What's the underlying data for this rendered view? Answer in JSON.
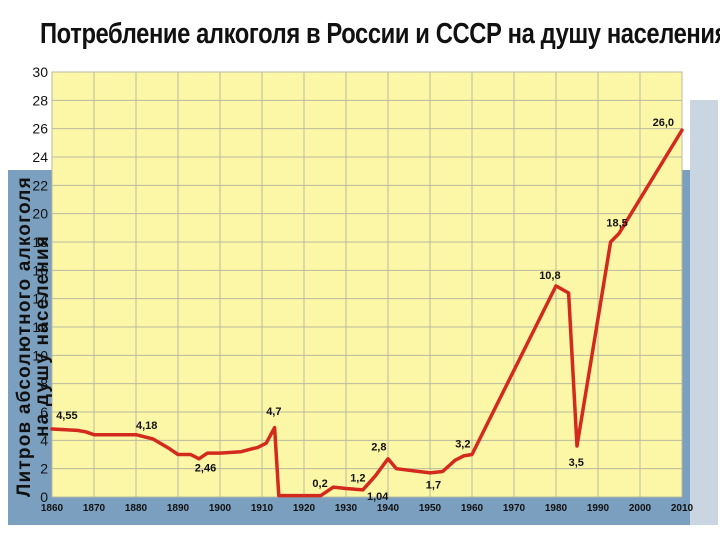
{
  "chart_data": {
    "type": "line",
    "title": "Потребление алкоголя в России и СССР на душу населения",
    "ylabel_line1": "Литров абсолютного алкоголя",
    "ylabel_line2": "на душу населения",
    "xlabel": "",
    "ylim": [
      0,
      30
    ],
    "xlim": [
      1860,
      2010
    ],
    "grid": true,
    "y_ticks": [
      "0",
      "2",
      "4",
      "6",
      "8",
      "10",
      "12",
      "14",
      "16",
      "18",
      "20",
      "22",
      "24",
      "26",
      "28",
      "30"
    ],
    "x_ticks": [
      "1860",
      "1870",
      "1880",
      "1890",
      "1900",
      "1910",
      "1920",
      "1930",
      "1940",
      "1950",
      "1960",
      "1970",
      "1980",
      "1990",
      "2000",
      "2010"
    ],
    "series": [
      {
        "name": "",
        "color": "#d42a1e",
        "x": [
          1860,
          1866,
          1868,
          1870,
          1880,
          1884,
          1888,
          1890,
          1893,
          1895,
          1897,
          1900,
          1905,
          1909,
          1911,
          1913,
          1914,
          1917,
          1924,
          1927,
          1930,
          1934,
          1937,
          1940,
          1942,
          1950,
          1953,
          1956,
          1958,
          1960,
          1980,
          1983,
          1985,
          1993,
          1995,
          2010
        ],
        "y": [
          4.8,
          4.7,
          4.6,
          4.4,
          4.4,
          4.1,
          3.4,
          3.0,
          3.0,
          2.7,
          3.1,
          3.1,
          3.2,
          3.5,
          3.8,
          4.9,
          0.1,
          0.1,
          0.1,
          0.7,
          0.6,
          0.5,
          1.5,
          2.7,
          2.0,
          1.7,
          1.8,
          2.6,
          2.9,
          3.0,
          14.9,
          14.4,
          3.6,
          18.0,
          18.6,
          25.9
        ]
      }
    ],
    "annotations": [
      {
        "text": "4,55",
        "x": 1861,
        "y": 5.5
      },
      {
        "text": "4,18",
        "x": 1880,
        "y": 4.8
      },
      {
        "text": "2,46",
        "x": 1894,
        "y": 1.8
      },
      {
        "text": "4,7",
        "x": 1911,
        "y": 5.8
      },
      {
        "text": "0,2",
        "x": 1922,
        "y": 0.7
      },
      {
        "text": "1,2",
        "x": 1931,
        "y": 1.1
      },
      {
        "text": "1,04",
        "x": 1935,
        "y": -0.2
      },
      {
        "text": "2,8",
        "x": 1936,
        "y": 3.3
      },
      {
        "text": "1,7",
        "x": 1949,
        "y": 0.6
      },
      {
        "text": "3,2",
        "x": 1956,
        "y": 3.5
      },
      {
        "text": "10,8",
        "x": 1976,
        "y": 15.4
      },
      {
        "text": "3,5",
        "x": 1983,
        "y": 2.2
      },
      {
        "text": "18,5",
        "x": 1992,
        "y": 19.1
      },
      {
        "text": "26,0",
        "x": 2003,
        "y": 26.2
      }
    ]
  }
}
